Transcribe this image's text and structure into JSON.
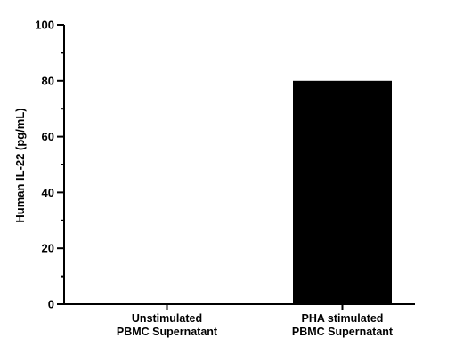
{
  "chart_data": {
    "type": "bar",
    "title": "",
    "xlabel": "",
    "ylabel": "Human IL-22 (pg/mL)",
    "categories": [
      [
        "Unstimulated",
        "PBMC Supernatant"
      ],
      [
        "PHA stimulated",
        "PBMC Supernatant"
      ]
    ],
    "values": [
      0,
      80
    ],
    "ylim": [
      0,
      100
    ],
    "yticks": [
      0,
      20,
      40,
      60,
      80,
      100
    ],
    "ytick_labels": [
      "0",
      "20",
      "40",
      "60",
      "80",
      "100"
    ],
    "minor_yticks": true,
    "grid": false,
    "legend": "none",
    "bar_color": "#000000"
  }
}
